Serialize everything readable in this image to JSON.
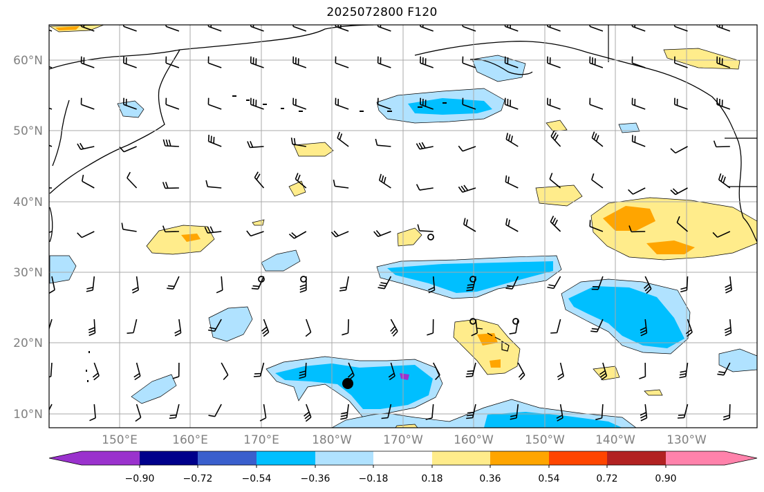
{
  "title": "2025072800 F120",
  "lat_labels": [
    "60°N",
    "50°N",
    "40°N",
    "30°N",
    "20°N",
    "10°N"
  ],
  "lon_labels": [
    "150°E",
    "160°E",
    "170°E",
    "180°W",
    "170°W",
    "160°W",
    "150°W",
    "140°W",
    "130°W"
  ],
  "colorbar": {
    "ticks": [
      "−0.90",
      "−0.72",
      "−0.54",
      "−0.36",
      "−0.18",
      "0.18",
      "0.36",
      "0.54",
      "0.72",
      "0.90"
    ],
    "colors": [
      "#9a32cd",
      "#00008b",
      "#3a5fcd",
      "#00bfff",
      "#b0e2ff",
      "#ffffff",
      "#ffec8b",
      "#ffa500",
      "#ff4500",
      "#b22222",
      "#ff82ab"
    ]
  },
  "colors": {
    "land_outline": "#000000",
    "grid": "#a9a9a9",
    "barb": "#000000"
  }
}
